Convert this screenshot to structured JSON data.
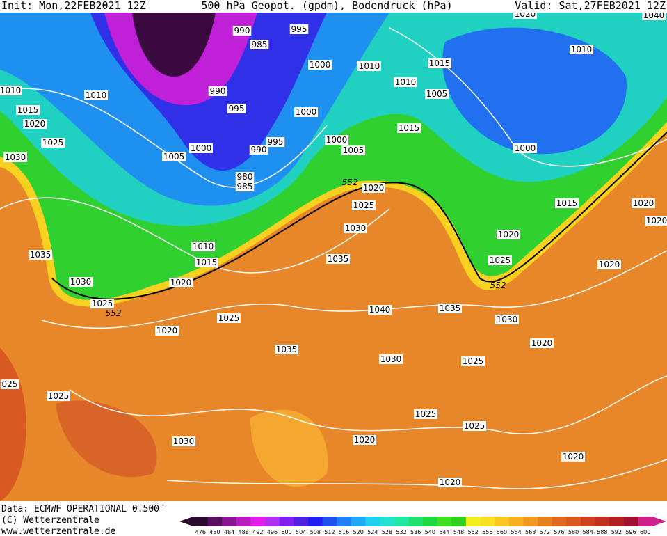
{
  "header": {
    "init": "Init: Mon,22FEB2021 12Z",
    "title": "500 hPa Geopot. (gpdm), Bodendruck (hPa)",
    "valid": "Valid: Sat,27FEB2021 12Z"
  },
  "footer": {
    "data": "Data: ECMWF OPERATIONAL 0.500°",
    "copyright": "(C) Wetterzentrale",
    "url": "www.wetterzentrale.de"
  },
  "isobar_labels": [
    "1020",
    "1040",
    "990",
    "995",
    "985",
    "1000",
    "1010",
    "1015",
    "1010",
    "1010",
    "1010",
    "990",
    "1010",
    "1005",
    "995",
    "1000",
    "1015",
    "1020",
    "1015",
    "1025",
    "995",
    "1000",
    "990",
    "1000",
    "1005",
    "1000",
    "1030",
    "1005",
    "980",
    "985",
    "552",
    "1020",
    "1025",
    "1015",
    "1020",
    "1020",
    "1030",
    "1020",
    "1010",
    "1035",
    "1035",
    "1015",
    "1025",
    "1020",
    "1030",
    "1020",
    "552",
    "1025",
    "552",
    "1040",
    "1035",
    "1025",
    "1030",
    "1020",
    "1020",
    "1035",
    "1030",
    "1025",
    "025",
    "1025",
    "1025",
    "1025",
    "1030",
    "1020",
    "1020",
    "1020"
  ],
  "colorbar": {
    "levels": [
      476,
      480,
      484,
      488,
      492,
      496,
      500,
      504,
      508,
      512,
      516,
      520,
      524,
      528,
      532,
      536,
      540,
      544,
      548,
      552,
      556,
      560,
      564,
      568,
      572,
      576,
      580,
      584,
      588,
      592,
      596,
      600
    ],
    "colors": [
      "#2b0a2e",
      "#5a1060",
      "#8a1590",
      "#b81cc0",
      "#e020e8",
      "#b030f0",
      "#8020f0",
      "#5020e0",
      "#2020f0",
      "#2050f0",
      "#2080f8",
      "#20a8f8",
      "#20d0f0",
      "#20e0d0",
      "#20e8a0",
      "#20e070",
      "#20d840",
      "#40e020",
      "#30d020",
      "#f0f020",
      "#f8e020",
      "#f8c820",
      "#f8b020",
      "#f09820",
      "#e88020",
      "#e06820",
      "#d85820",
      "#d04020",
      "#c03020",
      "#b02020",
      "#a01030",
      "#d0208a"
    ]
  }
}
